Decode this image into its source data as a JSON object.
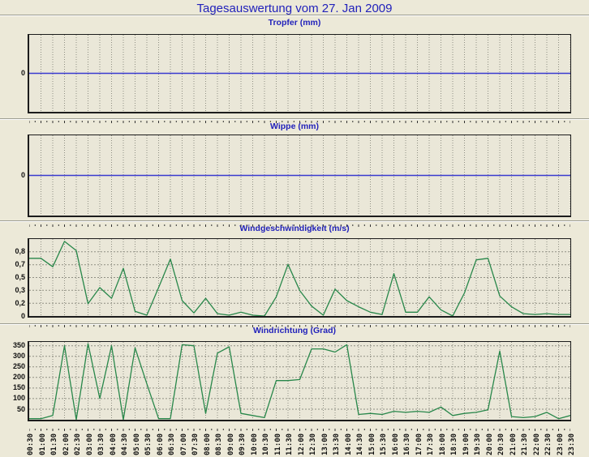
{
  "header": {
    "title": "Tagesauswertung vom 27. Jan 2009"
  },
  "x_axis": {
    "labels": [
      "00:30",
      "01:00",
      "01:30",
      "02:00",
      "02:30",
      "03:00",
      "03:30",
      "04:00",
      "04:30",
      "05:00",
      "05:30",
      "06:00",
      "06:30",
      "07:00",
      "07:30",
      "08:00",
      "08:30",
      "09:00",
      "09:30",
      "10:00",
      "10:30",
      "11:00",
      "11:30",
      "12:00",
      "12:30",
      "13:00",
      "13:30",
      "14:00",
      "14:30",
      "15:00",
      "15:30",
      "16:00",
      "16:30",
      "17:00",
      "17:30",
      "18:00",
      "18:30",
      "19:00",
      "19:30",
      "20:00",
      "20:30",
      "21:00",
      "21:30",
      "22:00",
      "22:30",
      "23:00",
      "23:30"
    ]
  },
  "colors": {
    "background": "#ECE9D8",
    "plot_background": "#EAE7D8",
    "grid": "#8F8F83",
    "plot_border": "#1C1C1C",
    "zero_line_blue": "#3A3ACF",
    "series_green": "#28874A",
    "title_blue": "#2222BB",
    "axis_text": "#111111",
    "tick": "#333333"
  },
  "chart_data": [
    {
      "id": "tropfer",
      "type": "line",
      "title": "Tropfer (mm)",
      "ylabel": "mm",
      "x": "shared: x_axis.labels (30-min steps)",
      "ymin": -1,
      "ymax": 1,
      "grid": "vertical-only",
      "y_ticks": [
        {
          "label": "0",
          "value": 0
        }
      ],
      "h_grid": false,
      "line": "blue",
      "values": [
        0,
        0,
        0,
        0,
        0,
        0,
        0,
        0,
        0,
        0,
        0,
        0,
        0,
        0,
        0,
        0,
        0,
        0,
        0,
        0,
        0,
        0,
        0,
        0,
        0,
        0,
        0,
        0,
        0,
        0,
        0,
        0,
        0,
        0,
        0,
        0,
        0,
        0,
        0,
        0,
        0,
        0,
        0,
        0,
        0,
        0,
        0
      ]
    },
    {
      "id": "wippe",
      "type": "line",
      "title": "Wippe (mm)",
      "ylabel": "mm",
      "x": "shared: x_axis.labels (30-min steps)",
      "ymin": -1,
      "ymax": 1,
      "grid": "vertical-only",
      "y_ticks": [
        {
          "label": "0",
          "value": 0
        }
      ],
      "h_grid": false,
      "line": "blue",
      "values": [
        0,
        0,
        0,
        0,
        0,
        0,
        0,
        0,
        0,
        0,
        0,
        0,
        0,
        0,
        0,
        0,
        0,
        0,
        0,
        0,
        0,
        0,
        0,
        0,
        0,
        0,
        0,
        0,
        0,
        0,
        0,
        0,
        0,
        0,
        0,
        0,
        0,
        0,
        0,
        0,
        0,
        0,
        0,
        0,
        0,
        0,
        0
      ]
    },
    {
      "id": "windgeschwindigkeit",
      "type": "line",
      "title": "Windgeschwindigkeit (m/s)",
      "ylabel": "m/s",
      "x": "shared: x_axis.labels (30-min steps)",
      "ymin": 0,
      "ymax": 1.0,
      "grid": "both-dashed",
      "y_ticks": [
        {
          "label": "0,8",
          "value": 0.8333
        },
        {
          "label": "0,7",
          "value": 0.6667
        },
        {
          "label": "0,5",
          "value": 0.5
        },
        {
          "label": "0,3",
          "value": 0.3333
        },
        {
          "label": "0,2",
          "value": 0.1667
        },
        {
          "label": "0",
          "value": 0
        }
      ],
      "h_grid": true,
      "line": "green",
      "values": [
        0.75,
        0.75,
        0.64,
        0.97,
        0.85,
        0.16,
        0.37,
        0.23,
        0.62,
        0.06,
        0.01,
        0.37,
        0.74,
        0.2,
        0.04,
        0.23,
        0.03,
        0.01,
        0.05,
        0.01,
        0.0,
        0.25,
        0.67,
        0.33,
        0.13,
        0.01,
        0.35,
        0.2,
        0.12,
        0.05,
        0.02,
        0.55,
        0.05,
        0.05,
        0.25,
        0.08,
        0.0,
        0.3,
        0.73,
        0.75,
        0.26,
        0.12,
        0.03,
        0.02,
        0.03,
        0.02,
        0.02
      ]
    },
    {
      "id": "windrichtung",
      "type": "line",
      "title": "Windrichtung (Grad)",
      "ylabel": "Grad",
      "x": "shared: x_axis.labels (30-min steps)",
      "ymin": 0,
      "ymax": 368,
      "grid": "both-dashed",
      "y_ticks": [
        {
          "label": "350",
          "value": 350
        },
        {
          "label": "300",
          "value": 300
        },
        {
          "label": "250",
          "value": 250
        },
        {
          "label": "200",
          "value": 200
        },
        {
          "label": "150",
          "value": 150
        },
        {
          "label": "100",
          "value": 100
        },
        {
          "label": "50",
          "value": 50
        }
      ],
      "h_grid": true,
      "line": "green",
      "values": [
        5,
        5,
        20,
        350,
        0,
        360,
        100,
        350,
        0,
        340,
        170,
        5,
        5,
        355,
        350,
        30,
        315,
        345,
        30,
        20,
        10,
        185,
        185,
        190,
        335,
        335,
        320,
        355,
        25,
        30,
        25,
        40,
        35,
        40,
        35,
        60,
        20,
        30,
        35,
        47,
        325,
        15,
        10,
        15,
        35,
        5,
        20
      ]
    }
  ]
}
